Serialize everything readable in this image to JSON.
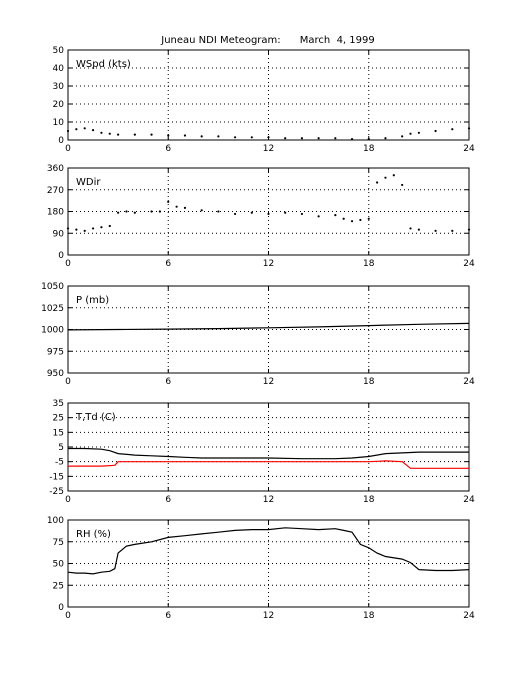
{
  "title": "Juneau NDI Meteogram:      March  4, 1999",
  "chart_data": [
    {
      "type": "scatter",
      "label": "WSpd (kts)",
      "xlim": [
        0,
        24
      ],
      "xticks": [
        0,
        6,
        12,
        18,
        24
      ],
      "ylim": [
        0,
        50
      ],
      "yticks": [
        0,
        10,
        20,
        30,
        40,
        50
      ],
      "grid": true,
      "series": [
        {
          "color": "#000000",
          "points": [
            [
              0,
              5
            ],
            [
              0.5,
              6
            ],
            [
              1,
              6.5
            ],
            [
              1.5,
              5.5
            ],
            [
              2,
              4
            ],
            [
              2.5,
              3.5
            ],
            [
              3,
              3
            ],
            [
              4,
              3
            ],
            [
              5,
              3
            ],
            [
              6,
              2.5
            ],
            [
              7,
              2.5
            ],
            [
              8,
              2
            ],
            [
              9,
              2
            ],
            [
              10,
              1.5
            ],
            [
              11,
              1.5
            ],
            [
              12,
              1.5
            ],
            [
              13,
              1
            ],
            [
              14,
              1
            ],
            [
              15,
              1
            ],
            [
              16,
              1
            ],
            [
              17,
              0.5
            ],
            [
              18,
              0.5
            ],
            [
              19,
              1
            ],
            [
              20,
              2
            ],
            [
              20.5,
              3.5
            ],
            [
              21,
              4
            ],
            [
              22,
              5
            ],
            [
              23,
              6
            ],
            [
              24,
              6.5
            ]
          ]
        }
      ]
    },
    {
      "type": "scatter",
      "label": "WDir",
      "xlim": [
        0,
        24
      ],
      "xticks": [
        0,
        6,
        12,
        18,
        24
      ],
      "ylim": [
        0,
        360
      ],
      "yticks": [
        0,
        90,
        180,
        270,
        360
      ],
      "grid": true,
      "series": [
        {
          "color": "#000000",
          "points": [
            [
              0,
              110
            ],
            [
              0.5,
              105
            ],
            [
              1,
              100
            ],
            [
              1.5,
              110
            ],
            [
              2,
              115
            ],
            [
              2.5,
              120
            ],
            [
              3,
              175
            ],
            [
              3.5,
              180
            ],
            [
              4,
              175
            ],
            [
              5,
              180
            ],
            [
              5.5,
              180
            ],
            [
              6,
              220
            ],
            [
              6.5,
              200
            ],
            [
              7,
              195
            ],
            [
              8,
              185
            ],
            [
              9,
              180
            ],
            [
              10,
              170
            ],
            [
              11,
              175
            ],
            [
              12,
              170
            ],
            [
              13,
              175
            ],
            [
              14,
              170
            ],
            [
              15,
              160
            ],
            [
              16,
              165
            ],
            [
              16.5,
              150
            ],
            [
              17,
              140
            ],
            [
              17.5,
              145
            ],
            [
              18,
              150
            ],
            [
              18.5,
              300
            ],
            [
              19,
              320
            ],
            [
              19.5,
              330
            ],
            [
              20,
              290
            ],
            [
              20.5,
              110
            ],
            [
              21,
              105
            ],
            [
              22,
              100
            ],
            [
              23,
              100
            ],
            [
              24,
              105
            ]
          ]
        }
      ]
    },
    {
      "type": "line",
      "label": "P (mb)",
      "xlim": [
        0,
        24
      ],
      "xticks": [
        0,
        6,
        12,
        18,
        24
      ],
      "ylim": [
        950,
        1050
      ],
      "yticks": [
        950,
        975,
        1000,
        1025,
        1050
      ],
      "grid": true,
      "series": [
        {
          "color": "#000000",
          "points": [
            [
              0,
              999.5
            ],
            [
              3,
              1000
            ],
            [
              6,
              1000.5
            ],
            [
              9,
              1001
            ],
            [
              12,
              1002
            ],
            [
              15,
              1003
            ],
            [
              18,
              1004.5
            ],
            [
              21,
              1006
            ],
            [
              24,
              1007
            ]
          ]
        }
      ]
    },
    {
      "type": "line",
      "label": "T,Td (C)",
      "xlim": [
        0,
        24
      ],
      "xticks": [
        0,
        6,
        12,
        18,
        24
      ],
      "ylim": [
        -25,
        35
      ],
      "yticks": [
        -25,
        -15,
        -5,
        5,
        15,
        25,
        35
      ],
      "grid": true,
      "series": [
        {
          "color": "#000000",
          "points": [
            [
              0,
              4
            ],
            [
              1,
              4
            ],
            [
              2,
              3.5
            ],
            [
              2.5,
              2.5
            ],
            [
              3,
              0.5
            ],
            [
              4,
              -0.5
            ],
            [
              5,
              -1
            ],
            [
              6,
              -1.5
            ],
            [
              7,
              -2
            ],
            [
              8,
              -2.5
            ],
            [
              10,
              -2.5
            ],
            [
              12,
              -2.5
            ],
            [
              14,
              -3
            ],
            [
              16,
              -3
            ],
            [
              17,
              -2.5
            ],
            [
              18,
              -1.5
            ],
            [
              19,
              0.5
            ],
            [
              20,
              1
            ],
            [
              21,
              1.5
            ],
            [
              22,
              1.5
            ],
            [
              23,
              1.5
            ],
            [
              24,
              1.5
            ]
          ]
        },
        {
          "color": "#ff0000",
          "points": [
            [
              0,
              -8
            ],
            [
              1,
              -8
            ],
            [
              2,
              -8
            ],
            [
              2.8,
              -7.5
            ],
            [
              3,
              -5
            ],
            [
              6,
              -5
            ],
            [
              9,
              -5
            ],
            [
              12,
              -5
            ],
            [
              15,
              -5
            ],
            [
              18,
              -5
            ],
            [
              19,
              -4.5
            ],
            [
              20,
              -5
            ],
            [
              20.5,
              -9.5
            ],
            [
              22,
              -9.5
            ],
            [
              24,
              -9.5
            ]
          ]
        }
      ]
    },
    {
      "type": "line",
      "label": "RH (%)",
      "xlim": [
        0,
        24
      ],
      "xticks": [
        0,
        6,
        12,
        18,
        24
      ],
      "ylim": [
        0,
        100
      ],
      "yticks": [
        0,
        25,
        50,
        75,
        100
      ],
      "grid": true,
      "series": [
        {
          "color": "#000000",
          "points": [
            [
              0,
              40
            ],
            [
              0.5,
              39
            ],
            [
              1,
              39
            ],
            [
              1.5,
              38
            ],
            [
              2,
              40
            ],
            [
              2.5,
              41
            ],
            [
              2.8,
              44
            ],
            [
              3,
              62
            ],
            [
              3.5,
              70
            ],
            [
              4,
              72
            ],
            [
              5,
              75
            ],
            [
              6,
              80
            ],
            [
              7,
              82
            ],
            [
              8,
              84
            ],
            [
              9,
              86
            ],
            [
              10,
              88
            ],
            [
              11,
              89
            ],
            [
              12,
              89
            ],
            [
              13,
              91
            ],
            [
              14,
              90
            ],
            [
              15,
              89
            ],
            [
              16,
              90
            ],
            [
              16.5,
              88
            ],
            [
              17,
              86
            ],
            [
              17.5,
              72
            ],
            [
              18,
              68
            ],
            [
              18.5,
              62
            ],
            [
              19,
              58
            ],
            [
              20,
              55
            ],
            [
              20.5,
              51
            ],
            [
              21,
              43
            ],
            [
              22,
              42
            ],
            [
              23,
              42
            ],
            [
              24,
              43
            ]
          ]
        }
      ]
    }
  ]
}
